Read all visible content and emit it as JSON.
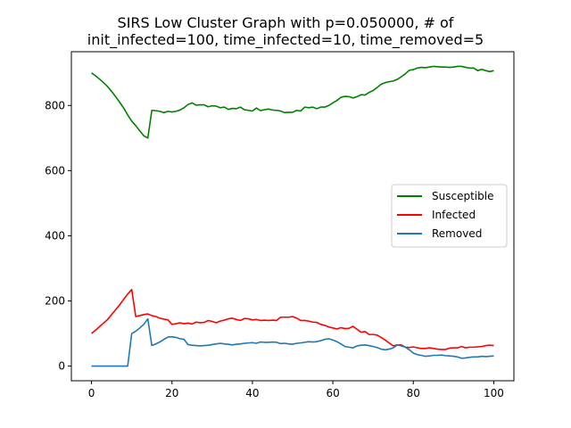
{
  "chart_data": {
    "type": "line",
    "title_lines": [
      "SIRS Low Cluster Graph with p=0.050000, # of",
      "init_infected=100, time_infected=10, time_removed=5"
    ],
    "xlabel": "",
    "ylabel": "",
    "xlim": [
      -5,
      105
    ],
    "ylim": [
      -45,
      965
    ],
    "xticks": [
      0,
      20,
      40,
      60,
      80,
      100
    ],
    "yticks": [
      0,
      200,
      400,
      600,
      800
    ],
    "grid": false,
    "legend_position": "center-right",
    "x": [
      0,
      1,
      2,
      3,
      4,
      5,
      6,
      7,
      8,
      9,
      10,
      11,
      12,
      13,
      14,
      15,
      16,
      17,
      18,
      19,
      20,
      21,
      22,
      23,
      24,
      25,
      26,
      27,
      28,
      29,
      30,
      31,
      32,
      33,
      34,
      35,
      36,
      37,
      38,
      39,
      40,
      41,
      42,
      43,
      44,
      45,
      46,
      47,
      48,
      49,
      50,
      51,
      52,
      53,
      54,
      55,
      56,
      57,
      58,
      59,
      60,
      61,
      62,
      63,
      64,
      65,
      66,
      67,
      68,
      69,
      70,
      71,
      72,
      73,
      74,
      75,
      76,
      77,
      78,
      79,
      80,
      81,
      82,
      83,
      84,
      85,
      86,
      87,
      88,
      89,
      90,
      91,
      92,
      93,
      94,
      95,
      96,
      97,
      98,
      99,
      100
    ],
    "series": [
      {
        "name": "Susceptible",
        "color": "#008000",
        "values": [
          900,
          891,
          881,
          870,
          858,
          843,
          827,
          810,
          792,
          771,
          752,
          738,
          722,
          707,
          700,
          785,
          784,
          782,
          778,
          782,
          780,
          782,
          786,
          793,
          803,
          808,
          801,
          802,
          802,
          796,
          799,
          798,
          793,
          795,
          788,
          791,
          790,
          795,
          787,
          785,
          783,
          792,
          784,
          787,
          789,
          786,
          785,
          783,
          778,
          779,
          779,
          785,
          783,
          795,
          793,
          795,
          790,
          795,
          795,
          800,
          808,
          815,
          825,
          828,
          827,
          823,
          827,
          833,
          832,
          840,
          846,
          855,
          865,
          870,
          873,
          875,
          880,
          888,
          897,
          908,
          910,
          915,
          917,
          916,
          918,
          920,
          919,
          918,
          918,
          917,
          918,
          920,
          920,
          917,
          915,
          915,
          907,
          911,
          907,
          904,
          907
        ]
      },
      {
        "name": "Infected",
        "color": "#ff0000",
        "values": [
          100,
          110,
          121,
          132,
          143,
          158,
          173,
          188,
          205,
          221,
          235,
          152,
          155,
          158,
          160,
          155,
          152,
          147,
          144,
          142,
          128,
          130,
          133,
          130,
          132,
          129,
          135,
          133,
          134,
          140,
          137,
          133,
          138,
          141,
          145,
          147,
          143,
          140,
          146,
          145,
          142,
          143,
          140,
          141,
          140,
          141,
          140,
          150,
          150,
          150,
          152,
          147,
          140,
          140,
          138,
          135,
          134,
          128,
          125,
          120,
          117,
          114,
          118,
          115,
          116,
          122,
          113,
          104,
          106,
          97,
          97,
          95,
          88,
          80,
          71,
          62,
          65,
          65,
          58,
          57,
          59,
          56,
          54,
          54,
          56,
          54,
          52,
          51,
          51,
          55,
          56,
          56,
          60,
          56,
          58,
          58,
          59,
          60,
          63,
          64,
          63
        ]
      },
      {
        "name": "Removed",
        "color": "#1f77b4",
        "values": [
          0,
          0,
          0,
          0,
          0,
          0,
          0,
          0,
          0,
          0,
          100,
          107,
          117,
          128,
          145,
          63,
          68,
          74,
          82,
          89,
          90,
          88,
          84,
          82,
          66,
          64,
          63,
          62,
          63,
          64,
          66,
          68,
          70,
          68,
          67,
          65,
          67,
          68,
          70,
          71,
          72,
          70,
          74,
          73,
          73,
          74,
          73,
          69,
          70,
          68,
          67,
          70,
          71,
          73,
          75,
          74,
          75,
          78,
          82,
          84,
          80,
          75,
          68,
          60,
          58,
          56,
          62,
          64,
          65,
          63,
          60,
          57,
          52,
          50,
          52,
          56,
          65,
          62,
          58,
          50,
          40,
          35,
          33,
          30,
          31,
          33,
          33,
          34,
          32,
          31,
          30,
          28,
          24,
          25,
          27,
          28,
          28,
          30,
          29,
          30,
          31
        ]
      }
    ]
  }
}
